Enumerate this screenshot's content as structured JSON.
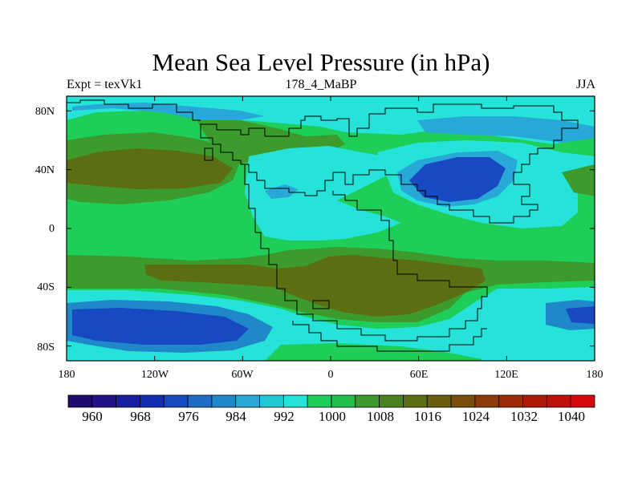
{
  "figure": {
    "title": "Mean Sea Level Pressure (in hPa)",
    "experiment": "Expt = texVk1",
    "period": "178_4_MaBP",
    "season": "JJA"
  },
  "axes": {
    "y_ticks": [
      "80N",
      "40N",
      "0",
      "40S",
      "80S"
    ],
    "y_values": [
      80,
      40,
      0,
      -40,
      -80
    ],
    "x_ticks": [
      "180",
      "120W",
      "60W",
      "0",
      "60E",
      "120E",
      "180"
    ],
    "x_values": [
      -180,
      -120,
      -60,
      0,
      60,
      120,
      180
    ],
    "lon_range": [
      -180,
      180
    ],
    "lat_range": [
      -90,
      90
    ]
  },
  "colorbar": {
    "labels": [
      "960",
      "968",
      "976",
      "984",
      "992",
      "1000",
      "1008",
      "1016",
      "1024",
      "1032",
      "1040"
    ],
    "units": "hPa",
    "min": 956,
    "max": 1044,
    "step": 4,
    "colors": [
      "#1f0a6e",
      "#231389",
      "#1a1fa0",
      "#152db1",
      "#1749c0",
      "#1f6bc6",
      "#1f88c8",
      "#28a8d6",
      "#22c8d4",
      "#26e3da",
      "#1fcd59",
      "#23bf4c",
      "#3d9a2c",
      "#4a8121",
      "#5c6e12",
      "#6a5e0f",
      "#7a4e0b",
      "#8c3b0a",
      "#9b2a08",
      "#ad1a08",
      "#c0100a",
      "#d5090b"
    ],
    "field_colors": {
      "p988": "#1749c0",
      "p992": "#1f88c8",
      "p996": "#28a8d6",
      "p1000": "#26e3da",
      "p1008": "#1fcd59",
      "p1012": "#3d9a2c",
      "p1020": "#5c6e12"
    }
  }
}
